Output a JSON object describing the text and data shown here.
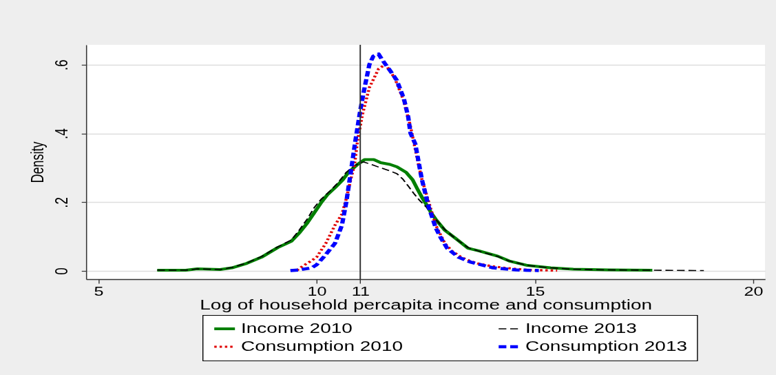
{
  "chart_data": {
    "type": "line",
    "xlabel": "Log of household percapita income and consumption",
    "ylabel": "Density",
    "xlim": [
      4.72,
      20.27
    ],
    "ylim": [
      -0.024,
      0.658
    ],
    "xticks": [
      5,
      10,
      11,
      15,
      20
    ],
    "yticks": [
      0,
      {
        "value": 0.2,
        "label": ".2"
      },
      {
        "value": 0.4,
        "label": ".4"
      },
      {
        "value": 0.6,
        "label": ".6"
      }
    ],
    "grid": "y",
    "legend": "bottom",
    "ref_lines": [
      {
        "axis": "x",
        "value": 11
      }
    ],
    "series": [
      {
        "name": "Income 2010",
        "color": "#007f00",
        "line_style": "solid",
        "x": [
          6.35,
          7.0,
          7.27,
          7.79,
          8.06,
          8.4,
          8.74,
          9.11,
          9.42,
          9.6,
          9.79,
          9.95,
          10.1,
          10.25,
          10.42,
          10.6,
          10.73,
          10.94,
          11.1,
          11.31,
          11.47,
          11.68,
          11.84,
          12.05,
          12.2,
          12.31,
          12.41,
          12.52,
          12.62,
          12.73,
          12.94,
          13.2,
          13.47,
          13.73,
          14.15,
          14.41,
          14.83,
          15.36,
          15.88,
          16.67,
          17.69
        ],
        "values": [
          0.002,
          0.002,
          0.006,
          0.004,
          0.009,
          0.022,
          0.04,
          0.068,
          0.086,
          0.11,
          0.14,
          0.17,
          0.198,
          0.222,
          0.242,
          0.265,
          0.287,
          0.31,
          0.324,
          0.324,
          0.315,
          0.31,
          0.303,
          0.287,
          0.265,
          0.238,
          0.215,
          0.192,
          0.17,
          0.15,
          0.118,
          0.093,
          0.066,
          0.058,
          0.043,
          0.029,
          0.016,
          0.009,
          0.005,
          0.003,
          0.002
        ]
      },
      {
        "name": "Income 2013",
        "color": "#000000",
        "line_style": "dashed",
        "x": [
          6.35,
          7.0,
          7.27,
          7.79,
          8.06,
          8.4,
          8.74,
          9.11,
          9.42,
          9.6,
          9.79,
          9.95,
          10.1,
          10.31,
          10.5,
          10.68,
          10.85,
          11.0,
          11.08,
          11.25,
          11.47,
          11.66,
          11.84,
          11.97,
          12.1,
          12.23,
          12.36,
          12.52,
          12.73,
          12.94,
          13.2,
          13.47,
          13.73,
          14.15,
          14.41,
          14.83,
          15.36,
          15.88,
          16.67,
          17.69,
          18.87
        ],
        "values": [
          0.002,
          0.002,
          0.006,
          0.004,
          0.01,
          0.023,
          0.042,
          0.07,
          0.09,
          0.118,
          0.152,
          0.185,
          0.208,
          0.233,
          0.258,
          0.287,
          0.305,
          0.315,
          0.317,
          0.31,
          0.3,
          0.292,
          0.283,
          0.268,
          0.247,
          0.225,
          0.205,
          0.185,
          0.15,
          0.12,
          0.092,
          0.068,
          0.057,
          0.042,
          0.029,
          0.016,
          0.009,
          0.005,
          0.003,
          0.002,
          0.001
        ]
      },
      {
        "name": "Consumption 2010",
        "color": "#e00000",
        "line_style": "dotted",
        "x": [
          9.55,
          9.68,
          9.85,
          10.0,
          10.21,
          10.42,
          10.58,
          10.68,
          10.79,
          10.87,
          10.94,
          11.05,
          11.21,
          11.42,
          11.58,
          11.79,
          12.0,
          12.15,
          12.26,
          12.41,
          12.57,
          12.73,
          12.94,
          13.1,
          13.31,
          13.5,
          13.68,
          14.0,
          14.31,
          14.83,
          15.51
        ],
        "values": [
          0.002,
          0.014,
          0.027,
          0.04,
          0.08,
          0.133,
          0.165,
          0.21,
          0.27,
          0.31,
          0.38,
          0.455,
          0.534,
          0.588,
          0.601,
          0.561,
          0.494,
          0.421,
          0.354,
          0.267,
          0.2,
          0.133,
          0.08,
          0.058,
          0.04,
          0.03,
          0.022,
          0.014,
          0.009,
          0.003,
          0.001
        ]
      },
      {
        "name": "Consumption 2013",
        "color": "#0000ff",
        "line_style": "dashed",
        "x": [
          9.4,
          9.6,
          9.89,
          10.0,
          10.16,
          10.42,
          10.58,
          10.68,
          10.79,
          10.89,
          11.0,
          11.1,
          11.21,
          11.3,
          11.42,
          11.5,
          11.58,
          11.7,
          11.84,
          12.0,
          12.1,
          12.15,
          12.26,
          12.41,
          12.57,
          12.73,
          12.85,
          12.99,
          13.25,
          13.52,
          14.04,
          14.57,
          15.09
        ],
        "values": [
          0.001,
          0.003,
          0.009,
          0.018,
          0.04,
          0.08,
          0.133,
          0.2,
          0.293,
          0.38,
          0.467,
          0.534,
          0.601,
          0.625,
          0.631,
          0.615,
          0.601,
          0.58,
          0.554,
          0.501,
          0.447,
          0.401,
          0.37,
          0.267,
          0.185,
          0.125,
          0.095,
          0.066,
          0.04,
          0.026,
          0.009,
          0.003,
          0.001
        ]
      }
    ]
  }
}
